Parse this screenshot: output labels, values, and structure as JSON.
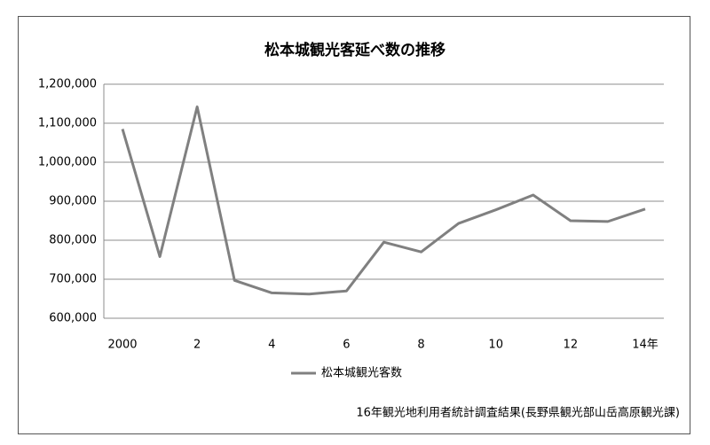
{
  "chart_data": {
    "type": "line",
    "title": "松本城観光客延べ数の推移",
    "categories": [
      "2000",
      null,
      "2",
      null,
      "4",
      null,
      "6",
      null,
      "8",
      null,
      "10",
      null,
      "12",
      null,
      "14年"
    ],
    "series": [
      {
        "name": "松本城観光客数",
        "color": "#808080",
        "values": [
          1085000,
          758000,
          1142000,
          697000,
          665000,
          662000,
          670000,
          795000,
          770000,
          843000,
          878000,
          916000,
          850000,
          848000,
          880000
        ]
      }
    ],
    "ylim": [
      600000,
      1200000
    ],
    "yticks": [
      {
        "value": 600000,
        "label": "600,000"
      },
      {
        "value": 700000,
        "label": "700,000"
      },
      {
        "value": 800000,
        "label": "800,000"
      },
      {
        "value": 900000,
        "label": "900,000"
      },
      {
        "value": 1000000,
        "label": "1,000,000"
      },
      {
        "value": 1100000,
        "label": "1,100,000"
      },
      {
        "value": 1200000,
        "label": "1,200,000"
      }
    ],
    "grid": true,
    "legend": "bottom",
    "source": "16年観光地利用者統計調査結果(長野県観光部山岳高原観光課)"
  }
}
